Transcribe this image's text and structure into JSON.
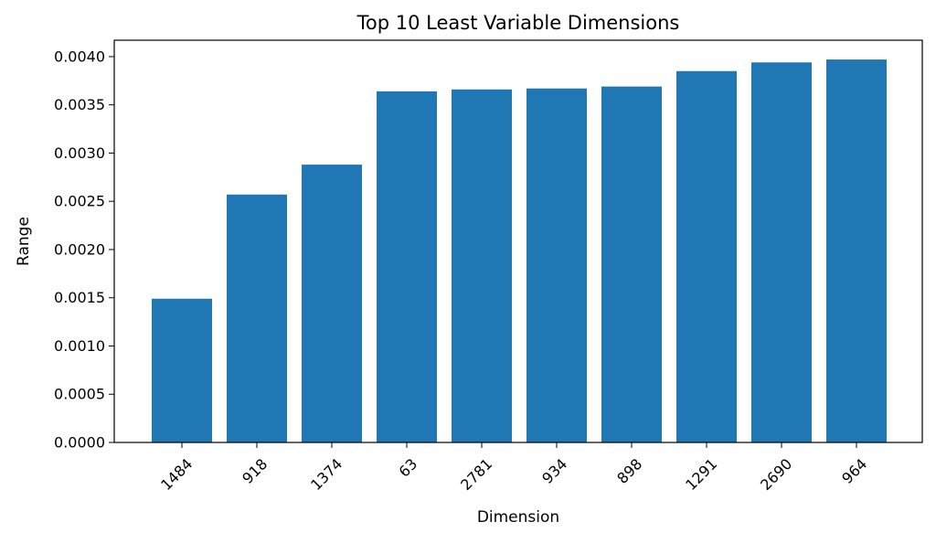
{
  "chart_data": {
    "type": "bar",
    "title": "Top 10 Least Variable Dimensions",
    "xlabel": "Dimension",
    "ylabel": "Range",
    "categories": [
      "1484",
      "918",
      "1374",
      "63",
      "2781",
      "934",
      "898",
      "1291",
      "2690",
      "964"
    ],
    "values": [
      0.00149,
      0.00257,
      0.00288,
      0.00364,
      0.00366,
      0.00367,
      0.00369,
      0.00385,
      0.00394,
      0.00397
    ],
    "ylim": [
      0,
      0.00417
    ],
    "yticks": [
      0.0,
      0.0005,
      0.001,
      0.0015,
      0.002,
      0.0025,
      0.003,
      0.0035,
      0.004
    ],
    "ytick_labels": [
      "0.0000",
      "0.0005",
      "0.0010",
      "0.0015",
      "0.0020",
      "0.0025",
      "0.0030",
      "0.0035",
      "0.0040"
    ],
    "bar_color": "#1f77b4",
    "grid": false,
    "legend": "none"
  }
}
